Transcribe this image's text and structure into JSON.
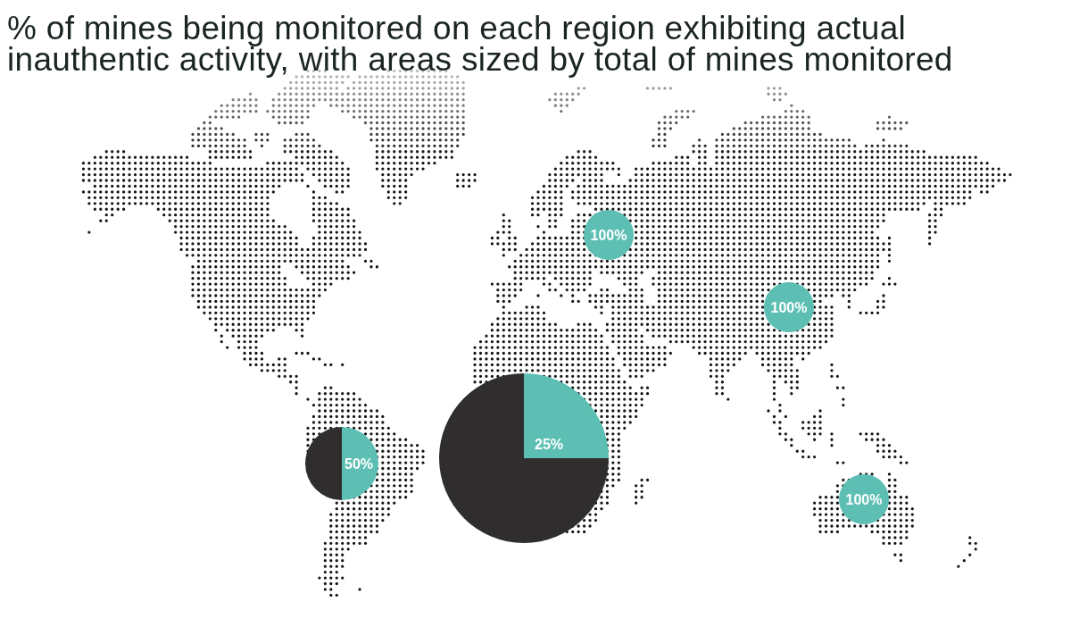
{
  "chart_data": {
    "type": "pie",
    "title": "% of mines being monitored on each region exhibiting actual inauthentic activity, with areas sized by total of mines monitored",
    "categories": [
      null,
      null
    ],
    "colors": [
      "#5dbfb3",
      "#2f2d2d"
    ],
    "series": [
      {
        "values": [
          100,
          0
        ],
        "value_labels": [
          "100%",
          null
        ]
      },
      {
        "values": [
          100,
          0
        ],
        "value_labels": [
          "100%",
          null
        ]
      },
      {
        "values": [
          50,
          50
        ],
        "value_labels": [
          "50%",
          null
        ]
      },
      {
        "values": [
          25,
          75
        ],
        "value_labels": [
          "25%",
          null
        ]
      },
      {
        "values": [
          100,
          0
        ],
        "value_labels": [
          "100%",
          null
        ]
      }
    ]
  }
}
